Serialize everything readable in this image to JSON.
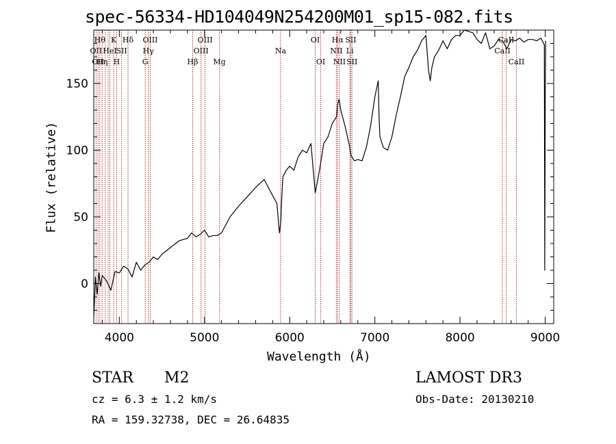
{
  "chart_data": {
    "type": "line",
    "title": "spec-56334-HD104049N254200M01_sp15-082.fits",
    "xlabel": "Wavelength (Å)",
    "ylabel": "Flux (relative)",
    "xlim": [
      3700,
      9100
    ],
    "ylim": [
      -30,
      190
    ],
    "x_ticks": [
      4000,
      5000,
      6000,
      7000,
      8000,
      9000
    ],
    "y_ticks": [
      0,
      50,
      100,
      150
    ],
    "series": [
      {
        "name": "flux",
        "x": [
          3700,
          3720,
          3740,
          3760,
          3780,
          3800,
          3850,
          3900,
          3950,
          4000,
          4050,
          4100,
          4150,
          4200,
          4250,
          4300,
          4350,
          4400,
          4450,
          4500,
          4600,
          4700,
          4800,
          4850,
          4900,
          4950,
          5000,
          5050,
          5100,
          5150,
          5200,
          5300,
          5400,
          5500,
          5600,
          5700,
          5800,
          5850,
          5880,
          5895,
          5905,
          5920,
          5960,
          6000,
          6050,
          6100,
          6150,
          6200,
          6250,
          6300,
          6350,
          6400,
          6450,
          6500,
          6550,
          6565,
          6580,
          6600,
          6650,
          6700,
          6720,
          6760,
          6800,
          6850,
          6900,
          6950,
          7000,
          7040,
          7050,
          7060,
          7100,
          7150,
          7200,
          7250,
          7300,
          7350,
          7400,
          7450,
          7500,
          7550,
          7600,
          7630,
          7650,
          7670,
          7700,
          7750,
          7800,
          7850,
          7900,
          7950,
          8000,
          8050,
          8100,
          8150,
          8200,
          8250,
          8300,
          8350,
          8400,
          8450,
          8500,
          8550,
          8600,
          8650,
          8700,
          8750,
          8800,
          8850,
          8900,
          8950,
          8990,
          8995,
          9000,
          9005
        ],
        "y": [
          -25,
          5,
          -8,
          8,
          -2,
          6,
          2,
          -5,
          9,
          8,
          13,
          11,
          5,
          16,
          10,
          14,
          16,
          20,
          18,
          22,
          27,
          32,
          34,
          38,
          35,
          37,
          40,
          35,
          36,
          36,
          38,
          50,
          58,
          65,
          72,
          78,
          66,
          60,
          38,
          46,
          62,
          80,
          85,
          88,
          85,
          95,
          100,
          98,
          105,
          68,
          85,
          105,
          110,
          120,
          125,
          135,
          138,
          130,
          118,
          104,
          96,
          92,
          93,
          92,
          102,
          118,
          140,
          152,
          124,
          110,
          102,
          100,
          110,
          126,
          140,
          155,
          162,
          170,
          175,
          182,
          186,
          160,
          152,
          162,
          170,
          175,
          182,
          176,
          183,
          186,
          186,
          190,
          189,
          188,
          183,
          180,
          188,
          176,
          178,
          183,
          182,
          176,
          183,
          182,
          184,
          181,
          183,
          183,
          182,
          184,
          179,
          10,
          140,
          182
        ]
      }
    ],
    "line_markers": [
      {
        "wavelength": 3727,
        "label": "OII",
        "row": 2
      },
      {
        "wavelength": 3750,
        "label": "OII",
        "row": 3
      },
      {
        "wavelength": 3771,
        "label": "Hθ",
        "row": 1
      },
      {
        "wavelength": 3798,
        "label": "Hη",
        "row": 3
      },
      {
        "wavelength": 3835,
        "label": "",
        "row": 0
      },
      {
        "wavelength": 3869,
        "label": "",
        "row": 0
      },
      {
        "wavelength": 3889,
        "label": "HeI",
        "row": 2
      },
      {
        "wavelength": 3934,
        "label": "K",
        "row": 1
      },
      {
        "wavelength": 3969,
        "label": "H",
        "row": 3
      },
      {
        "wavelength": 4026,
        "label": "SII",
        "row": 2
      },
      {
        "wavelength": 4102,
        "label": "Hδ",
        "row": 1
      },
      {
        "wavelength": 4304,
        "label": "G",
        "row": 3
      },
      {
        "wavelength": 4341,
        "label": "Hγ",
        "row": 2
      },
      {
        "wavelength": 4363,
        "label": "OIII",
        "row": 1
      },
      {
        "wavelength": 4861,
        "label": "Hβ",
        "row": 3
      },
      {
        "wavelength": 4959,
        "label": "OIII",
        "row": 2
      },
      {
        "wavelength": 5007,
        "label": "OIII",
        "row": 1
      },
      {
        "wavelength": 5175,
        "label": "Mg",
        "row": 3
      },
      {
        "wavelength": 5893,
        "label": "Na",
        "row": 2
      },
      {
        "wavelength": 6300,
        "label": "OI",
        "row": 1
      },
      {
        "wavelength": 6364,
        "label": "OI",
        "row": 3
      },
      {
        "wavelength": 6548,
        "label": "NII",
        "row": 2
      },
      {
        "wavelength": 6563,
        "label": "Hα",
        "row": 1
      },
      {
        "wavelength": 6584,
        "label": "NII",
        "row": 3
      },
      {
        "wavelength": 6707,
        "label": "Li",
        "row": 2
      },
      {
        "wavelength": 6717,
        "label": "SII",
        "row": 1
      },
      {
        "wavelength": 6731,
        "label": "SII",
        "row": 3
      },
      {
        "wavelength": 8498,
        "label": "CaII",
        "row": 2
      },
      {
        "wavelength": 8542,
        "label": "CaII",
        "row": 1
      },
      {
        "wavelength": 8662,
        "label": "CaII",
        "row": 3
      }
    ]
  },
  "info": {
    "object_type": "STAR",
    "subclass": "M2",
    "survey": "LAMOST DR3",
    "cz": "cz = 6.3 ± 1.2 km/s",
    "obs_date": "Obs-Date: 20130210",
    "ra_dec": "RA = 159.32738, DEC =  26.64835"
  },
  "colors": {
    "spectrum": "#000000",
    "line_marker": "#b03030",
    "axes": "#000000",
    "background": "#ffffff"
  }
}
